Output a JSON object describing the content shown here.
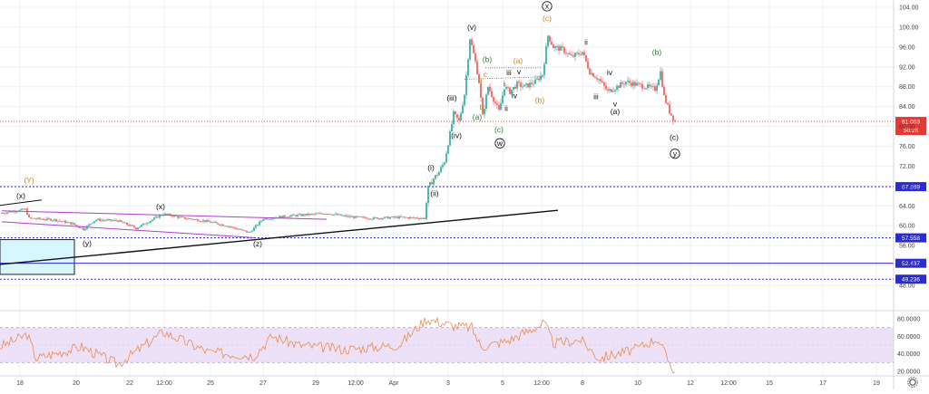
{
  "chart_data": {
    "type": "candlestick",
    "title": "",
    "x_ticks": [
      "18",
      "20",
      "22",
      "12:00",
      "25",
      "27",
      "29",
      "12:00",
      "Apr",
      "3",
      "5",
      "12:00",
      "8",
      "10",
      "12",
      "12:00",
      "15",
      "17",
      "19"
    ],
    "y_ticks": [
      "104.00",
      "100.00",
      "96.00",
      "92.00",
      "88.00",
      "84.00",
      "80.00",
      "76.00",
      "72.00",
      "68.00",
      "64.00",
      "60.00",
      "56.00",
      "52.00",
      "48.00"
    ],
    "ylim": [
      48,
      106
    ],
    "rsi_ticks": [
      "80.0000",
      "60.0000",
      "40.0000",
      "20.0000"
    ],
    "rsi_range": [
      20,
      80
    ],
    "price_levels": [
      {
        "value": "67.869",
        "color": "#2b2bd6"
      },
      {
        "value": "57.558",
        "color": "#2b2bd6"
      },
      {
        "value": "52.437",
        "color": "#2b2bd6"
      },
      {
        "value": "49.236",
        "color": "#2b2bd6"
      }
    ],
    "current_price": {
      "value": "81.003",
      "countdown": "50:26",
      "color": "#e53935"
    },
    "wave_labels": {
      "Y": "(Y)",
      "x": "(x)",
      "y": "(y)",
      "z": "(z)",
      "i": "(i)",
      "ii": "(ii)",
      "iii": "(iii)",
      "iv": "(iv)",
      "v": "(v)",
      "a": "a",
      "b": "b",
      "c": "c",
      "small_iii": "iii",
      "small_iv": "iv",
      "small_ii": "ii",
      "small_i": "i",
      "small_v": "v",
      "paren_a": "(a)",
      "paren_b": "(b)",
      "paren_c": "(c)",
      "circ_w": "w",
      "circ_x": "x",
      "circ_y": "y"
    },
    "colors": {
      "bull": "#26a69a",
      "bear": "#ef5350",
      "rsi_line": "#f08a4b",
      "rsi_band": "#ece1f7",
      "channel": "#b03cd0",
      "trendline": "#111111",
      "box": "#d5f7fd"
    }
  }
}
